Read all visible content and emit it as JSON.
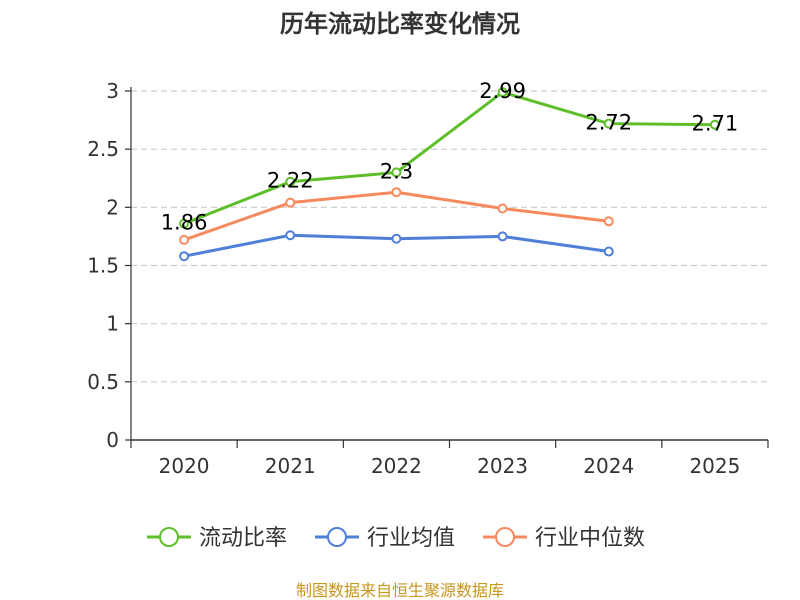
{
  "chart_data": {
    "type": "line",
    "title": "历年流动比率变化情况",
    "categories": [
      "2020",
      "2021",
      "2022",
      "2023",
      "2024",
      "2025"
    ],
    "ylim": [
      0,
      3
    ],
    "yticks": [
      0,
      0.5,
      1,
      1.5,
      2,
      2.5,
      3
    ],
    "ytick_labels": [
      "0",
      "0.5",
      "1",
      "1.5",
      "2",
      "2.5",
      "3"
    ],
    "grid": true,
    "legend_position": "bottom",
    "series": [
      {
        "name": "流动比率",
        "color": "#5fbf2a",
        "values": [
          1.86,
          2.22,
          2.3,
          2.99,
          2.72,
          2.71
        ],
        "labels": [
          "1.86",
          "2.22",
          "2.3",
          "2.99",
          "2.72",
          "2.71"
        ]
      },
      {
        "name": "行业均值",
        "color": "#4f7fd9",
        "values": [
          1.58,
          1.76,
          1.73,
          1.75,
          1.62,
          null
        ]
      },
      {
        "name": "行业中位数",
        "color": "#f7895e",
        "values": [
          1.72,
          2.04,
          2.13,
          1.99,
          1.88,
          null
        ]
      }
    ],
    "source": "制图数据来自恒生聚源数据库"
  }
}
